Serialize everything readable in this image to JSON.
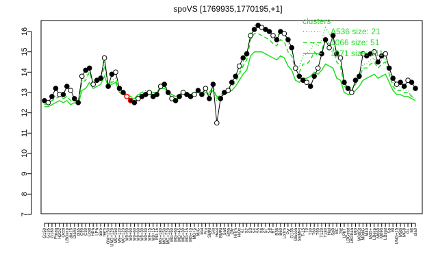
{
  "chart_data": {
    "type": "line",
    "title": "spoVS [1769935,1770195,+1]",
    "xlabel": "",
    "ylabel": "",
    "ylim": [
      7,
      16
    ],
    "yticks": [
      7,
      8,
      9,
      10,
      11,
      12,
      13,
      14,
      15,
      16
    ],
    "grid": false,
    "legend_position": "top-right",
    "legend": {
      "title": "clusters",
      "color": "#22dd22",
      "entries": [
        {
          "label": "A536 size: 21",
          "style": "dotted"
        },
        {
          "label": "1066 size: 51",
          "style": "dashed"
        },
        {
          "label": "1071 size: 211",
          "style": "solid"
        }
      ]
    },
    "x_labels": [
      "G150",
      "G135",
      "G180",
      "Paraq",
      "H2O2",
      "Oxctl",
      "LBGexp",
      "dia15",
      "Diami",
      "dia5",
      "C90",
      "C30",
      "Cold",
      "HPh",
      "LPh",
      "aero",
      "ferm",
      "GM+150",
      "UNG+120",
      "M0+150",
      "M9+120",
      "M0+120",
      "M9+90",
      "M0+90",
      "M0+60",
      "M9+60",
      "M9+30",
      "M0+30",
      "M9+15",
      "M0+15",
      "M0-15",
      "MG+180",
      "MG+150",
      "MG+120",
      "MG+90",
      "MG+60",
      "MG+45",
      "MG+30",
      "MG+15",
      "MG+10",
      "MG+5",
      "M/G",
      "Mal",
      "Fru",
      "SMM",
      "Glu",
      "Heat",
      "BMM",
      "Salt",
      "Etha",
      "Gly",
      "HiTm",
      "HiOs",
      "S1",
      "S2",
      "S3",
      "S4",
      "S5",
      "S6",
      "S7",
      "S8",
      "BT",
      "B36",
      "B60",
      "LoTm",
      "Pyr",
      "G135",
      "Glucon",
      "SMMPi",
      "T-15",
      "T0",
      "T30",
      "T60",
      "T90",
      "T120",
      "T180",
      "Hipl",
      "Sp0",
      "BC",
      "Sw",
      "LPhT",
      "LBGstat",
      "LBGtran",
      "Mt0",
      "M0diSt",
      "M0diG",
      "M40",
      "M4D+",
      "LBexp",
      "M060",
      "M090",
      "LBstat",
      "Sp",
      "BI",
      "UNG+15",
      "M9di",
      "MG8",
      "GL",
      "Mt",
      "dia0"
    ],
    "highlight_x": [
      22,
      23
    ],
    "series": [
      {
        "values": [
          12.6,
          12.5,
          12.8,
          13.2,
          12.9,
          12.9,
          13.3,
          13.1,
          12.7,
          12.5,
          13.8,
          14.1,
          14.2,
          13.4,
          13.6,
          13.7,
          14.7,
          13.3,
          13.9,
          14.0,
          13.2,
          13.0,
          12.8,
          12.6,
          12.5,
          12.7,
          12.8,
          12.9,
          13.0,
          12.8,
          12.9,
          13.3,
          13.4,
          13.0,
          12.7,
          12.6,
          12.8,
          13.0,
          12.9,
          12.8,
          12.9,
          13.1,
          12.9,
          13.2,
          12.7,
          13.4,
          11.5,
          12.7,
          13.0,
          13.1,
          13.5,
          13.8,
          14.3,
          14.7,
          14.9,
          15.8,
          16.1,
          16.3,
          16.2,
          16.1,
          16.0,
          15.8,
          15.6,
          16.0,
          15.9,
          15.6,
          15.2,
          14.2,
          13.8,
          13.6,
          13.5,
          13.3,
          13.8,
          14.2,
          14.9,
          15.6,
          15.2,
          15.8,
          14.9,
          14.7,
          13.5,
          13.2,
          13.0,
          13.6,
          13.8,
          14.9,
          14.8,
          14.9,
          15.0,
          14.5,
          14.8,
          14.9,
          14.2,
          13.7,
          13.4,
          13.5,
          13.3,
          13.6,
          13.5,
          13.2
        ]
      }
    ],
    "cluster_lines": [
      {
        "name": "A536 size: 21",
        "style": "dotted",
        "values": [
          12.4,
          12.5,
          12.6,
          12.8,
          12.9,
          12.7,
          12.8,
          12.6,
          12.7,
          12.5,
          13.6,
          13.7,
          14.2,
          13.4,
          13.6,
          13.7,
          14.5,
          13.4,
          13.6,
          13.7,
          13.1,
          13.0,
          12.9,
          12.8,
          12.7,
          12.9,
          13.0,
          13.1,
          13.1,
          13.0,
          13.0,
          13.3,
          13.4,
          13.1,
          12.9,
          12.8,
          12.9,
          13.1,
          13.0,
          12.9,
          13.0,
          13.1,
          13.0,
          13.2,
          13.0,
          13.3,
          12.6,
          12.9,
          13.0,
          13.1,
          13.4,
          13.6,
          14.0,
          14.5,
          14.8,
          15.9,
          16.3,
          16.3,
          16.3,
          16.2,
          16.1,
          15.9,
          15.7,
          16.0,
          15.9,
          15.4,
          15.1,
          14.3,
          14.3,
          14.8,
          14.9,
          15.1,
          15.5,
          15.3,
          15.6,
          16.2,
          15.9,
          15.7,
          14.8,
          14.6,
          13.4,
          13.3,
          13.2,
          13.5,
          13.8,
          14.4,
          14.4,
          14.6,
          14.7,
          14.4,
          14.6,
          14.7,
          14.1,
          13.5,
          13.3,
          13.3,
          13.1,
          13.1,
          12.8,
          12.7
        ]
      },
      {
        "name": "1066 size: 51",
        "style": "dashed",
        "values": [
          12.4,
          12.5,
          12.6,
          12.7,
          12.8,
          12.7,
          12.8,
          12.6,
          12.6,
          12.5,
          13.5,
          13.6,
          14.0,
          13.4,
          13.5,
          13.6,
          14.3,
          13.4,
          13.5,
          13.6,
          13.1,
          13.0,
          12.9,
          12.8,
          12.7,
          12.9,
          13.0,
          13.0,
          13.1,
          13.0,
          13.0,
          13.3,
          13.3,
          13.1,
          12.9,
          12.8,
          12.9,
          13.0,
          13.0,
          12.9,
          13.0,
          13.1,
          13.0,
          13.1,
          13.0,
          13.3,
          12.7,
          12.9,
          13.0,
          13.1,
          13.3,
          13.5,
          13.9,
          14.3,
          14.6,
          15.6,
          15.9,
          15.9,
          15.8,
          15.7,
          15.6,
          15.4,
          15.3,
          15.6,
          15.5,
          15.0,
          14.8,
          14.1,
          14.0,
          14.4,
          14.4,
          14.6,
          15.0,
          14.8,
          15.1,
          15.6,
          15.4,
          15.2,
          14.5,
          14.3,
          13.3,
          13.2,
          13.1,
          13.4,
          13.7,
          14.2,
          14.2,
          14.4,
          14.5,
          14.2,
          14.4,
          14.5,
          13.9,
          13.3,
          13.1,
          13.1,
          13.0,
          13.0,
          12.8,
          12.7
        ]
      },
      {
        "name": "1071 size: 211",
        "style": "solid",
        "values": [
          12.3,
          12.3,
          12.4,
          12.5,
          12.6,
          12.5,
          12.6,
          12.4,
          12.5,
          12.4,
          13.1,
          13.2,
          13.5,
          13.2,
          13.3,
          13.4,
          13.8,
          13.3,
          13.4,
          13.5,
          13.0,
          12.9,
          12.8,
          12.7,
          12.7,
          12.9,
          12.9,
          13.0,
          13.0,
          12.9,
          13.0,
          13.2,
          13.2,
          13.0,
          12.9,
          12.8,
          12.9,
          13.0,
          12.9,
          12.9,
          13.0,
          13.0,
          12.9,
          13.0,
          12.9,
          13.1,
          12.8,
          12.8,
          12.9,
          13.0,
          13.1,
          13.3,
          13.6,
          13.9,
          14.1,
          14.8,
          15.0,
          15.0,
          15.0,
          14.9,
          14.8,
          14.7,
          14.6,
          14.8,
          14.7,
          14.3,
          14.1,
          13.6,
          13.5,
          13.7,
          13.7,
          13.8,
          14.0,
          13.9,
          14.1,
          14.4,
          14.3,
          14.2,
          13.7,
          13.6,
          13.0,
          12.9,
          12.9,
          13.1,
          13.3,
          13.6,
          13.7,
          13.8,
          13.9,
          13.7,
          13.8,
          13.9,
          13.5,
          13.1,
          12.9,
          12.9,
          12.8,
          12.8,
          12.7,
          12.6
        ]
      }
    ]
  }
}
